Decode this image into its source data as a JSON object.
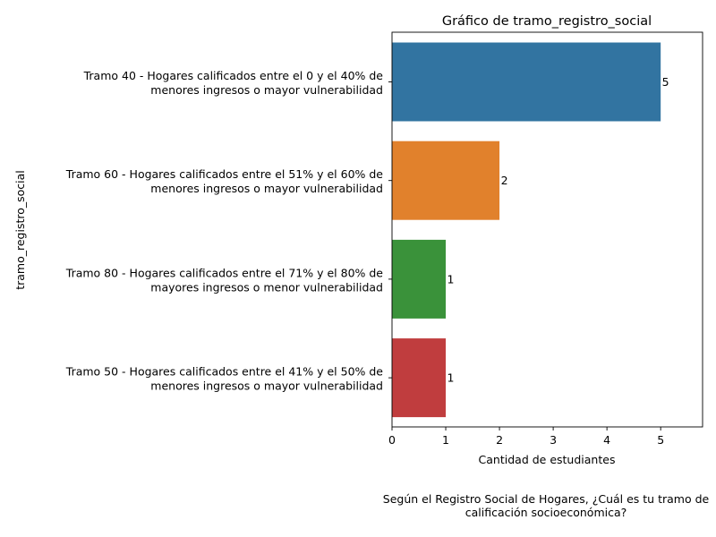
{
  "chart_data": {
    "type": "bar",
    "orientation": "horizontal",
    "title": "Gráfico de tramo_registro_social",
    "xlabel": "Cantidad de estudiantes",
    "ylabel": "tramo_registro_social",
    "xlim": [
      0,
      5.78
    ],
    "xticks": [
      "0",
      "1",
      "2",
      "3",
      "4",
      "5"
    ],
    "grid": false,
    "categories": [
      [
        "Tramo 40 - Hogares calificados entre el 0 y el 40% de",
        "menores ingresos o mayor vulnerabilidad"
      ],
      [
        "Tramo 60 - Hogares calificados entre el 51% y el 60% de",
        "menores ingresos o mayor vulnerabilidad"
      ],
      [
        "Tramo 80 - Hogares calificados entre el 71% y el 80% de",
        "mayores ingresos o menor vulnerabilidad"
      ],
      [
        "Tramo 50 - Hogares calificados entre el 41% y el 50% de",
        "menores ingresos o mayor vulnerabilidad"
      ]
    ],
    "values": [
      5,
      2,
      1,
      1
    ],
    "data_labels": [
      "5",
      "2",
      "1",
      "1"
    ],
    "colors": [
      "#3274a1",
      "#e1812c",
      "#3a923a",
      "#c03d3e"
    ]
  },
  "caption": {
    "line1": "Según el Registro Social de Hogares, ¿Cuál es tu tramo de",
    "line2": "calificación socioeconómica?"
  }
}
